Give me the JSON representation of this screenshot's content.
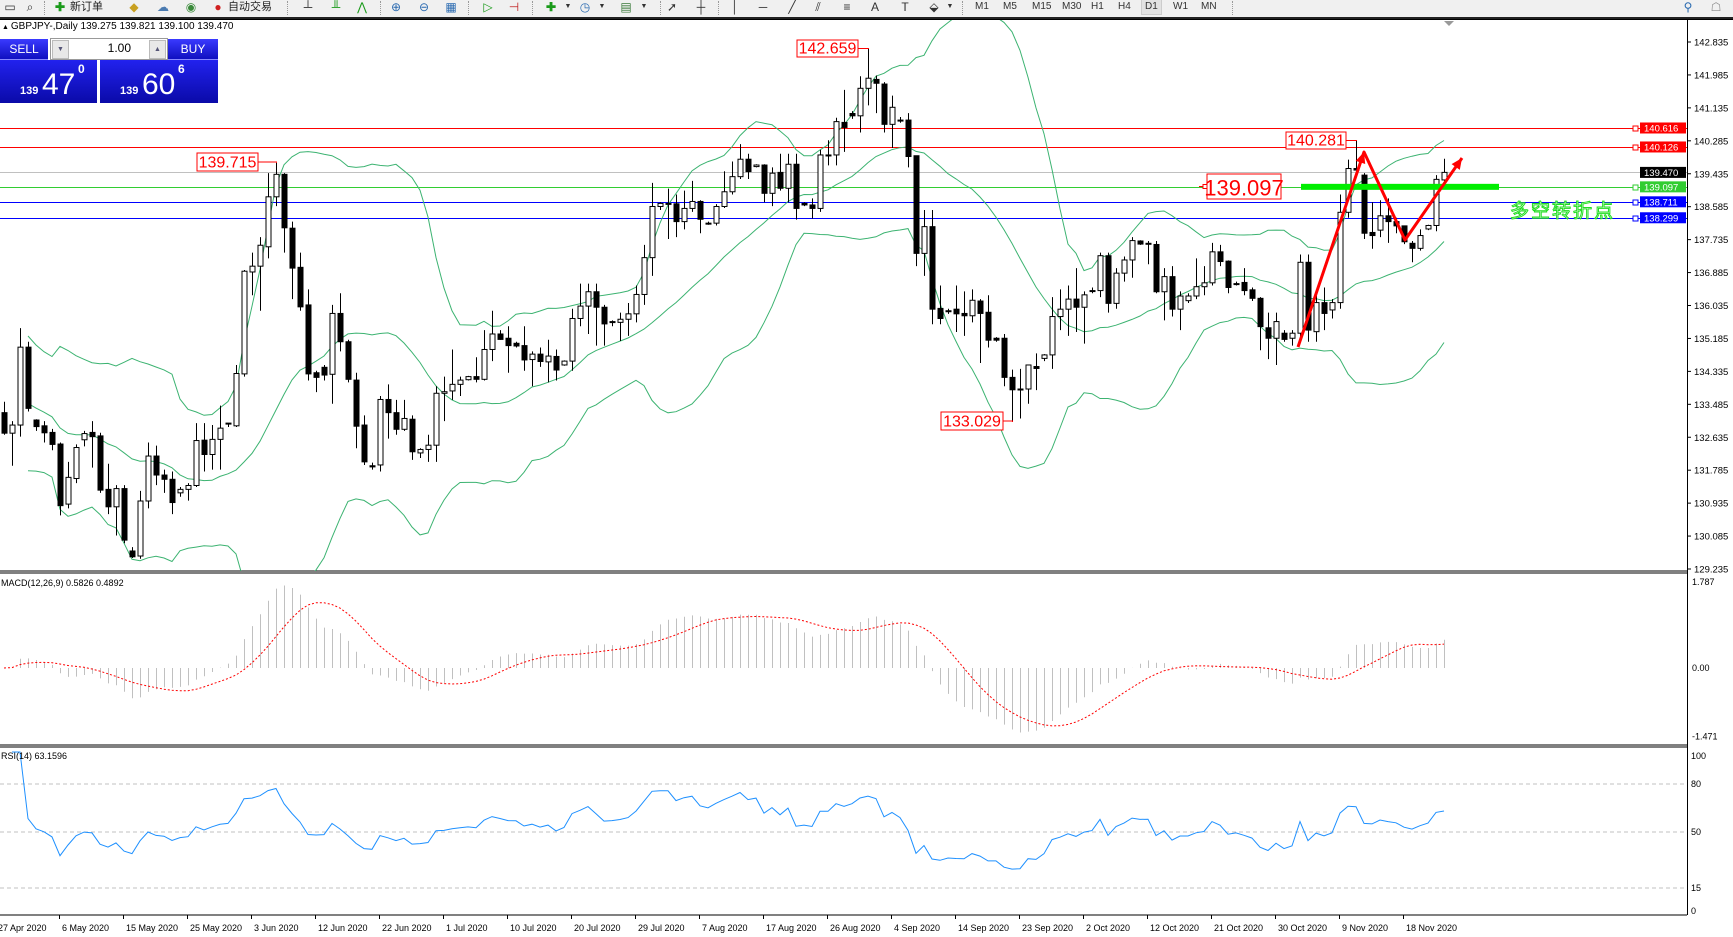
{
  "toolbar": {
    "new_order_label": "新订单",
    "autotrading_label": "自动交易",
    "timeframes": [
      "M1",
      "M5",
      "M15",
      "M30",
      "H1",
      "H4",
      "D1",
      "W1",
      "MN"
    ],
    "active_timeframe": "D1"
  },
  "chart_header": {
    "title": "GBPJPY-,Daily  139.275 139.821 139.100 139.470"
  },
  "one_click": {
    "sell_label": "SELL",
    "buy_label": "BUY",
    "lot": "1.00",
    "sell_price": {
      "small": "139",
      "big": "47",
      "sup": "0"
    },
    "buy_price": {
      "small": "139",
      "big": "60",
      "sup": "6"
    }
  },
  "annotation": {
    "text": "多空转折点",
    "text_color": "#22dd22",
    "zone_price": 139.097,
    "arrow_color": "#ff0000"
  },
  "chart_data": {
    "type": "candlestick",
    "symbol": "GBPJPY-",
    "timeframe": "Daily",
    "ylim": [
      129.235,
      142.835
    ],
    "price_axis_ticks": [
      "142.835",
      "141.985",
      "141.135",
      "140.285",
      "139.435",
      "138.585",
      "137.735",
      "136.885",
      "136.035",
      "135.185",
      "134.335",
      "133.485",
      "132.635",
      "131.785",
      "130.935",
      "130.085",
      "129.235"
    ],
    "date_labels": [
      "27 Apr 2020",
      "6 May 2020",
      "15 May 2020",
      "25 May 2020",
      "3 Jun 2020",
      "12 Jun 2020",
      "22 Jun 2020",
      "1 Jul 2020",
      "10 Jul 2020",
      "20 Jul 2020",
      "29 Jul 2020",
      "7 Aug 2020",
      "17 Aug 2020",
      "26 Aug 2020",
      "4 Sep 2020",
      "14 Sep 2020",
      "23 Sep 2020",
      "2 Oct 2020",
      "12 Oct 2020",
      "21 Oct 2020",
      "30 Oct 2020",
      "9 Nov 2020",
      "18 Nov 2020"
    ],
    "ohlc": [
      [
        133.27,
        133.55,
        132.7,
        132.74
      ],
      [
        132.74,
        133.05,
        131.9,
        132.95
      ],
      [
        132.95,
        135.45,
        132.65,
        134.96
      ],
      [
        134.96,
        135.1,
        133.3,
        133.38
      ],
      [
        133.08,
        133.1,
        132.8,
        132.91
      ],
      [
        132.93,
        133.05,
        132.5,
        132.75
      ],
      [
        132.76,
        132.85,
        132.3,
        132.45
      ],
      [
        132.46,
        132.5,
        130.62,
        130.87
      ],
      [
        130.91,
        132.0,
        130.8,
        131.6
      ],
      [
        131.57,
        132.45,
        131.45,
        132.37
      ],
      [
        132.57,
        132.8,
        132.4,
        132.73
      ],
      [
        132.76,
        133.05,
        131.85,
        132.65
      ],
      [
        132.67,
        132.75,
        131.2,
        131.27
      ],
      [
        131.29,
        131.95,
        130.65,
        130.84
      ],
      [
        130.84,
        131.4,
        130.1,
        131.31
      ],
      [
        131.31,
        131.4,
        129.9,
        129.98
      ],
      [
        129.7,
        129.8,
        129.52,
        129.55
      ],
      [
        129.57,
        131.25,
        129.5,
        130.99
      ],
      [
        130.99,
        132.5,
        130.8,
        132.15
      ],
      [
        132.15,
        132.42,
        131.4,
        131.66
      ],
      [
        131.66,
        131.8,
        131.2,
        131.55
      ],
      [
        131.55,
        131.75,
        130.65,
        130.95
      ],
      [
        131.2,
        131.35,
        131.1,
        131.29
      ],
      [
        131.29,
        131.45,
        131.0,
        131.39
      ],
      [
        131.39,
        133.0,
        131.35,
        132.55
      ],
      [
        132.56,
        133.0,
        131.75,
        132.19
      ],
      [
        132.19,
        132.95,
        131.8,
        132.58
      ],
      [
        132.58,
        133.45,
        131.8,
        132.87
      ],
      [
        133.0,
        133.0,
        132.9,
        132.98
      ],
      [
        132.93,
        134.5,
        132.9,
        134.28
      ],
      [
        134.27,
        136.95,
        134.2,
        136.92
      ],
      [
        136.9,
        137.4,
        136.3,
        137.05
      ],
      [
        137.05,
        137.8,
        135.9,
        137.59
      ],
      [
        137.55,
        139.45,
        137.25,
        138.84
      ],
      [
        138.84,
        139.715,
        138.6,
        139.42
      ],
      [
        139.42,
        139.45,
        137.4,
        138.04
      ],
      [
        138.03,
        138.2,
        136.2,
        137.0
      ],
      [
        137.02,
        137.4,
        135.9,
        136.0
      ],
      [
        136.05,
        136.45,
        134.1,
        134.27
      ],
      [
        134.3,
        134.35,
        133.8,
        134.18
      ],
      [
        134.44,
        134.5,
        134.1,
        134.24
      ],
      [
        134.26,
        136.05,
        133.5,
        135.83
      ],
      [
        135.83,
        136.35,
        134.85,
        135.1
      ],
      [
        135.1,
        135.15,
        134.05,
        134.13
      ],
      [
        134.11,
        134.3,
        132.35,
        132.92
      ],
      [
        132.95,
        133.2,
        131.92,
        132.0
      ],
      [
        131.9,
        131.98,
        131.8,
        131.87
      ],
      [
        131.92,
        133.7,
        131.75,
        133.61
      ],
      [
        133.61,
        134.0,
        132.6,
        133.27
      ],
      [
        133.27,
        133.6,
        132.7,
        132.84
      ],
      [
        132.84,
        133.6,
        132.8,
        133.12
      ],
      [
        133.1,
        133.2,
        132.05,
        132.26
      ],
      [
        132.23,
        132.35,
        132.1,
        132.32
      ],
      [
        132.32,
        132.7,
        132.0,
        132.43
      ],
      [
        132.43,
        133.95,
        132.0,
        133.77
      ],
      [
        133.77,
        134.2,
        133.05,
        133.81
      ],
      [
        133.83,
        134.9,
        133.6,
        134.0
      ],
      [
        134.0,
        134.2,
        133.7,
        134.11
      ],
      [
        134.12,
        134.22,
        134.1,
        134.2
      ],
      [
        134.2,
        134.7,
        134.05,
        134.13
      ],
      [
        134.13,
        135.4,
        134.1,
        134.9
      ],
      [
        134.9,
        135.9,
        134.6,
        135.3
      ],
      [
        135.3,
        135.4,
        135.15,
        135.16
      ],
      [
        135.19,
        135.5,
        134.3,
        135.0
      ],
      [
        135.06,
        135.1,
        134.95,
        134.99
      ],
      [
        135.0,
        135.5,
        134.35,
        134.63
      ],
      [
        134.64,
        134.85,
        133.95,
        134.78
      ],
      [
        134.78,
        134.95,
        134.45,
        134.59
      ],
      [
        134.58,
        135.15,
        134.05,
        134.73
      ],
      [
        134.72,
        134.9,
        134.1,
        134.37
      ],
      [
        134.5,
        134.62,
        134.48,
        134.6
      ],
      [
        134.6,
        135.95,
        134.35,
        135.7
      ],
      [
        135.7,
        136.6,
        135.5,
        136.02
      ],
      [
        136.02,
        136.6,
        135.3,
        136.39
      ],
      [
        136.39,
        136.6,
        135.0,
        135.99
      ],
      [
        135.99,
        136.05,
        135.0,
        135.56
      ],
      [
        135.62,
        135.65,
        135.5,
        135.6
      ],
      [
        135.6,
        135.85,
        135.12,
        135.68
      ],
      [
        135.68,
        136.1,
        135.25,
        135.82
      ],
      [
        135.82,
        136.55,
        135.6,
        136.32
      ],
      [
        136.32,
        137.6,
        136.05,
        137.27
      ],
      [
        137.27,
        139.2,
        136.8,
        138.59
      ],
      [
        138.59,
        138.7,
        138.5,
        138.67
      ],
      [
        138.67,
        139.05,
        137.75,
        138.67
      ],
      [
        138.66,
        138.9,
        137.8,
        138.2
      ],
      [
        138.2,
        139.0,
        138.0,
        138.54
      ],
      [
        138.54,
        139.25,
        138.45,
        138.72
      ],
      [
        138.72,
        138.75,
        137.9,
        138.26
      ],
      [
        138.16,
        138.2,
        138.12,
        138.16
      ],
      [
        138.16,
        138.65,
        138.1,
        138.59
      ],
      [
        138.59,
        139.5,
        138.55,
        138.97
      ],
      [
        138.97,
        139.75,
        138.9,
        139.36
      ],
      [
        139.36,
        140.2,
        139.3,
        139.81
      ],
      [
        139.81,
        139.95,
        139.3,
        139.49
      ],
      [
        139.62,
        139.68,
        139.6,
        139.66
      ],
      [
        139.66,
        139.68,
        138.7,
        138.93
      ],
      [
        138.93,
        139.6,
        138.6,
        139.45
      ],
      [
        139.47,
        139.95,
        139.0,
        139.06
      ],
      [
        139.06,
        139.95,
        138.7,
        139.68
      ],
      [
        139.68,
        139.95,
        138.25,
        138.54
      ],
      [
        138.67,
        138.7,
        138.6,
        138.63
      ],
      [
        138.63,
        138.8,
        138.28,
        138.54
      ],
      [
        138.54,
        140.05,
        138.45,
        139.92
      ],
      [
        139.92,
        140.3,
        139.65,
        139.92
      ],
      [
        139.92,
        140.88,
        139.65,
        140.78
      ],
      [
        140.76,
        141.6,
        140.0,
        140.63
      ],
      [
        140.99,
        141.05,
        140.85,
        140.93
      ],
      [
        140.93,
        141.95,
        140.5,
        141.64
      ],
      [
        141.64,
        142.659,
        141.2,
        141.9
      ],
      [
        141.87,
        141.97,
        141.0,
        141.77
      ],
      [
        141.75,
        141.8,
        140.5,
        140.71
      ],
      [
        140.71,
        141.45,
        140.1,
        141.15
      ],
      [
        140.82,
        140.9,
        140.75,
        140.82
      ],
      [
        140.82,
        141.0,
        139.6,
        139.88
      ],
      [
        139.9,
        139.9,
        137.05,
        137.38
      ],
      [
        137.38,
        138.5,
        136.8,
        138.07
      ],
      [
        138.07,
        138.5,
        135.55,
        135.94
      ],
      [
        135.96,
        136.55,
        135.55,
        135.7
      ],
      [
        135.88,
        135.95,
        135.82,
        135.9
      ],
      [
        135.94,
        136.55,
        135.35,
        135.82
      ],
      [
        135.83,
        136.4,
        135.25,
        135.77
      ],
      [
        135.77,
        136.45,
        135.6,
        136.17
      ],
      [
        136.15,
        136.2,
        134.55,
        135.83
      ],
      [
        135.86,
        136.3,
        134.95,
        135.14
      ],
      [
        135.19,
        135.22,
        135.1,
        135.14
      ],
      [
        135.19,
        135.3,
        133.95,
        134.18
      ],
      [
        134.18,
        134.38,
        133.029,
        133.86
      ],
      [
        133.88,
        134.4,
        133.12,
        133.88
      ],
      [
        133.88,
        134.5,
        133.5,
        134.5
      ],
      [
        134.46,
        134.8,
        133.85,
        134.41
      ],
      [
        134.67,
        134.78,
        134.6,
        134.76
      ],
      [
        134.76,
        136.25,
        134.4,
        135.75
      ],
      [
        135.75,
        136.45,
        135.4,
        135.94
      ],
      [
        135.94,
        136.55,
        135.25,
        136.2
      ],
      [
        136.2,
        137.0,
        135.35,
        135.99
      ],
      [
        135.99,
        136.4,
        135.05,
        136.31
      ],
      [
        136.42,
        136.5,
        136.35,
        136.42
      ],
      [
        136.42,
        137.4,
        136.25,
        137.32
      ],
      [
        137.32,
        137.4,
        135.85,
        136.09
      ],
      [
        136.09,
        137.0,
        135.95,
        136.87
      ],
      [
        136.87,
        137.3,
        136.65,
        137.21
      ],
      [
        137.21,
        137.8,
        136.75,
        137.71
      ],
      [
        137.7,
        137.72,
        137.6,
        137.62
      ],
      [
        137.64,
        137.7,
        137.1,
        137.64
      ],
      [
        137.61,
        137.7,
        136.35,
        136.39
      ],
      [
        136.39,
        137.0,
        135.65,
        136.78
      ],
      [
        136.78,
        137.05,
        135.75,
        135.94
      ],
      [
        135.94,
        136.4,
        135.4,
        136.28
      ],
      [
        136.16,
        136.35,
        136.1,
        136.28
      ],
      [
        136.28,
        137.25,
        136.2,
        136.52
      ],
      [
        136.52,
        137.05,
        136.3,
        136.62
      ],
      [
        136.62,
        137.65,
        136.55,
        137.42
      ],
      [
        137.42,
        137.6,
        137.05,
        137.17
      ],
      [
        137.18,
        137.2,
        136.35,
        136.5
      ],
      [
        136.58,
        136.65,
        136.55,
        136.6
      ],
      [
        136.63,
        137.0,
        136.3,
        136.42
      ],
      [
        136.44,
        136.5,
        136.15,
        136.22
      ],
      [
        136.22,
        136.25,
        134.88,
        135.49
      ],
      [
        135.46,
        135.85,
        134.65,
        135.19
      ],
      [
        135.19,
        135.85,
        134.5,
        135.62
      ],
      [
        135.32,
        135.4,
        135.1,
        135.16
      ],
      [
        135.19,
        135.4,
        135.0,
        135.32
      ],
      [
        135.32,
        137.35,
        135.1,
        137.15
      ],
      [
        137.15,
        137.35,
        135.1,
        135.4
      ],
      [
        135.36,
        136.4,
        135.1,
        136.11
      ],
      [
        136.11,
        136.5,
        135.4,
        135.83
      ],
      [
        135.92,
        136.2,
        135.7,
        136.11
      ],
      [
        136.11,
        138.9,
        135.95,
        138.44
      ],
      [
        138.44,
        139.8,
        138.3,
        139.57
      ],
      [
        139.57,
        140.281,
        139.4,
        139.53
      ],
      [
        139.4,
        139.45,
        137.75,
        137.9
      ],
      [
        137.92,
        138.7,
        137.5,
        137.84
      ],
      [
        137.98,
        138.75,
        137.8,
        138.35
      ],
      [
        138.35,
        138.8,
        137.65,
        138.2
      ],
      [
        138.2,
        138.3,
        137.9,
        138.09
      ],
      [
        138.09,
        138.1,
        137.62,
        137.68
      ],
      [
        137.64,
        137.7,
        137.15,
        137.51
      ],
      [
        137.51,
        138.0,
        137.45,
        137.84
      ],
      [
        138.01,
        138.12,
        137.98,
        138.1
      ],
      [
        138.1,
        139.4,
        137.95,
        139.29
      ],
      [
        139.275,
        139.821,
        139.1,
        139.47
      ]
    ],
    "horizontal_lines": [
      {
        "price": "140.616",
        "color": "#ff0000"
      },
      {
        "price": "140.126",
        "color": "#ff0000"
      },
      {
        "price": "139.470",
        "color": "#c0c0c0",
        "label_bg": "#000000"
      },
      {
        "price": "139.097",
        "color": "#32cd32"
      },
      {
        "price": "138.711",
        "color": "#0000ff"
      },
      {
        "price": "138.299",
        "color": "#0000ff"
      }
    ],
    "price_labels": [
      {
        "text": "142.659",
        "bar": 108,
        "kind": "high"
      },
      {
        "text": "139.715",
        "bar": 34,
        "kind": "high"
      },
      {
        "text": "133.029",
        "bar": 126,
        "kind": "low"
      },
      {
        "text": "140.281",
        "bar": 169,
        "kind": "high"
      },
      {
        "text": "139.097",
        "kind": "level"
      }
    ],
    "bollinger": {
      "period": 20,
      "deviation": 2,
      "color": "#3cb371"
    },
    "macd": {
      "label": "MACD(12,26,9) 0.5826 0.4892",
      "ylim": [
        -1.471,
        1.787
      ],
      "ticks": [
        "1.787",
        "0.00",
        "-1.471"
      ],
      "histogram_color": "#c0c0c0",
      "signal_color": "#ff0000"
    },
    "rsi": {
      "label": "RSI(14) 63.1596",
      "ylim": [
        0,
        100
      ],
      "ticks": [
        "100",
        "80",
        "50",
        "15",
        "0"
      ],
      "levels": [
        80,
        50,
        15
      ],
      "color": "#1e90ff"
    }
  }
}
